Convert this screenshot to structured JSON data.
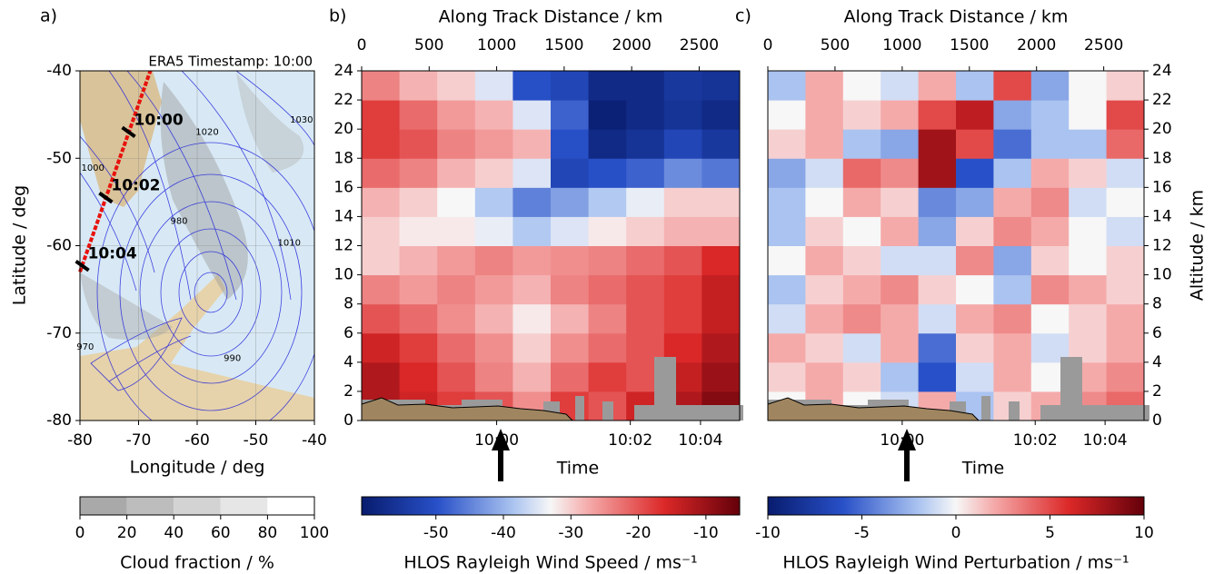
{
  "chart_data": [
    {
      "type": "map",
      "title": "a)",
      "annotation": "ERA5 Timestamp: 10:00",
      "annotation_color": "#2020e0",
      "xlabel": "Longitude / deg",
      "ylabel": "Latitude / deg",
      "xlim": [
        -80,
        -40
      ],
      "ylim": [
        -80,
        -40
      ],
      "xticks": [
        -80,
        -70,
        -60,
        -50,
        -40
      ],
      "yticks": [
        -80,
        -70,
        -60,
        -50,
        -40
      ],
      "grid": true,
      "track": {
        "x": [
          -80,
          -68
        ],
        "y": [
          -63,
          -40
        ],
        "color": "#e8120c"
      },
      "time_labels": [
        {
          "label": "10:00",
          "x": -71.7,
          "y": -47
        },
        {
          "label": "10:02",
          "x": -75.6,
          "y": -54.5
        },
        {
          "label": "10:04",
          "x": -79.6,
          "y": -62.3
        }
      ],
      "contour_color": "#1a1adb",
      "contour_labels": [
        {
          "value": 1030,
          "x": -42.2,
          "y": -45.6
        },
        {
          "value": 1020,
          "x": -58.3,
          "y": -47
        },
        {
          "value": 1000,
          "x": -77.8,
          "y": -51.1
        },
        {
          "value": 980,
          "x": -63.1,
          "y": -57.2
        },
        {
          "value": 1010,
          "x": -44.3,
          "y": -59.7
        },
        {
          "value": 990,
          "x": -54,
          "y": -72.9
        },
        {
          "value": 970,
          "x": -79.1,
          "y": -71.6
        }
      ],
      "colorbar": {
        "label": "Cloud fraction / %",
        "lim": [
          0,
          100
        ],
        "ticks": [
          0,
          20,
          40,
          60,
          80,
          100
        ]
      }
    },
    {
      "type": "heatmap",
      "title": "b)",
      "xlabel": "Along Track Distance / km",
      "x2label": "Time",
      "xlim": [
        0,
        2800
      ],
      "xticks": [
        0,
        500,
        1000,
        1500,
        2000,
        2500
      ],
      "ylim": [
        0,
        24
      ],
      "yticks": [
        0,
        2,
        4,
        6,
        8,
        10,
        12,
        14,
        16,
        18,
        20,
        22,
        24
      ],
      "time_ticks": [
        {
          "value": 1000,
          "label": "10:00"
        },
        {
          "value": 1990,
          "label": "10:02"
        },
        {
          "value": 2510,
          "label": "10:04"
        }
      ],
      "bins": [
        0,
        280,
        560,
        840,
        1120,
        1400,
        1680,
        1960,
        2240,
        2520,
        2800
      ],
      "ybins": [
        0,
        2,
        4,
        6,
        8,
        10,
        12,
        14,
        16,
        18,
        20,
        22,
        24
      ],
      "values": [
        [
          -12,
          -15,
          -18,
          -20,
          -25,
          -18,
          -20,
          -15,
          -12,
          -8
        ],
        [
          -12,
          -16,
          -20,
          -24,
          -28,
          -22,
          -18,
          -20,
          -14,
          -10
        ],
        [
          -15,
          -18,
          -22,
          -25,
          -30,
          -25,
          -22,
          -20,
          -16,
          -12
        ],
        [
          -20,
          -22,
          -25,
          -28,
          -32,
          -28,
          -24,
          -20,
          -18,
          -14
        ],
        [
          -24,
          -26,
          -24,
          -26,
          -28,
          -24,
          -22,
          -20,
          -18,
          -14
        ],
        [
          -30,
          -28,
          -26,
          -24,
          -26,
          -25,
          -24,
          -22,
          -20,
          -16
        ],
        [
          -30,
          -32,
          -32,
          -34,
          -38,
          -35,
          -32,
          -30,
          -28,
          -28
        ],
        [
          -28,
          -30,
          -33,
          -38,
          -45,
          -42,
          -38,
          -34,
          -30,
          -30
        ],
        [
          -22,
          -24,
          -28,
          -30,
          -35,
          -52,
          -50,
          -48,
          -44,
          -46
        ],
        [
          -18,
          -20,
          -24,
          -26,
          -28,
          -50,
          -58,
          -56,
          -52,
          -55
        ],
        [
          -18,
          -22,
          -26,
          -28,
          -35,
          -48,
          -60,
          -58,
          -56,
          -58
        ],
        [
          -24,
          -28,
          -30,
          -35,
          -50,
          -52,
          -58,
          -58,
          -55,
          -56
        ]
      ],
      "colorbar": {
        "label": "HLOS Rayleigh Wind Speed / ms⁻¹",
        "lim": [
          -61,
          -5
        ],
        "ticks": [
          -50,
          -40,
          -30,
          -20,
          -10
        ]
      }
    },
    {
      "type": "heatmap",
      "title": "c)",
      "xlabel": "Along Track Distance / km",
      "x2label": "Time",
      "ylabel": "Altitude / km",
      "xlim": [
        0,
        2800
      ],
      "xticks": [
        0,
        500,
        1000,
        1500,
        2000,
        2500
      ],
      "ylim": [
        0,
        24
      ],
      "yticks": [
        0,
        2,
        4,
        6,
        8,
        10,
        12,
        14,
        16,
        18,
        20,
        22,
        24
      ],
      "time_ticks": [
        {
          "value": 1000,
          "label": "10:00"
        },
        {
          "value": 1990,
          "label": "10:02"
        },
        {
          "value": 2510,
          "label": "10:04"
        }
      ],
      "bins": [
        0,
        280,
        560,
        840,
        1120,
        1400,
        1680,
        1960,
        2240,
        2520,
        2800
      ],
      "ybins": [
        0,
        2,
        4,
        6,
        8,
        10,
        12,
        14,
        16,
        18,
        20,
        22,
        24
      ],
      "values": [
        [
          0,
          2,
          0,
          -1,
          2,
          -2,
          1,
          2,
          3,
          4
        ],
        [
          1,
          2,
          1,
          -2,
          -6,
          -1,
          2,
          0,
          2,
          3
        ],
        [
          2,
          1,
          -1,
          2,
          -5,
          1,
          2,
          -1,
          1,
          2
        ],
        [
          -1,
          2,
          3,
          2,
          -1,
          2,
          3,
          0,
          1,
          2
        ],
        [
          -2,
          1,
          2,
          3,
          1,
          0,
          -2,
          3,
          2,
          1
        ],
        [
          0,
          2,
          1,
          -1,
          -1,
          3,
          -3,
          1,
          0,
          1
        ],
        [
          -2,
          1,
          0,
          2,
          -3,
          1,
          3,
          2,
          0,
          -1
        ],
        [
          -2,
          0,
          2,
          1,
          -4,
          -3,
          2,
          3,
          -1,
          0
        ],
        [
          -3,
          -1,
          4,
          3,
          8,
          -6,
          -2,
          2,
          1,
          -1
        ],
        [
          1,
          2,
          -2,
          -3,
          8,
          5,
          -5,
          -2,
          -2,
          4
        ],
        [
          0,
          2,
          1,
          2,
          5,
          7,
          -3,
          -2,
          0,
          5
        ],
        [
          -2,
          2,
          0,
          -1,
          2,
          -2,
          5,
          -3,
          0,
          1
        ]
      ],
      "colorbar": {
        "label": "HLOS Rayleigh Wind Perturbation / ms⁻¹",
        "lim": [
          -10,
          10
        ],
        "ticks": [
          -10,
          -5,
          0,
          5,
          10
        ]
      }
    }
  ]
}
